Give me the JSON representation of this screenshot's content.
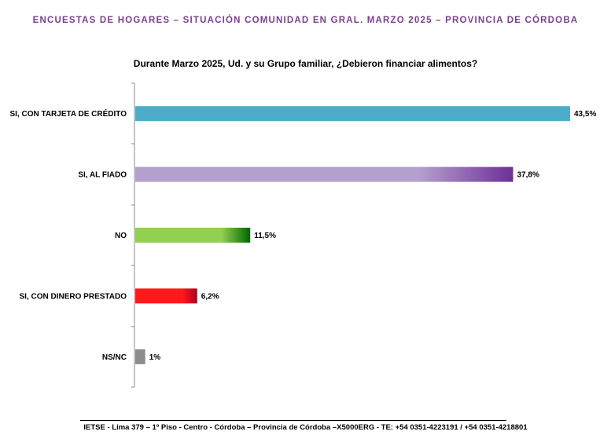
{
  "header": {
    "title": "ENCUESTAS DE HOGARES – SITUACIÓN COMUNIDAD EN GRAL. MARZO 2025 – PROVINCIA DE CÓRDOBA"
  },
  "footer": {
    "text": "IETSE - Lima 379 – 1º Piso - Centro - Córdoba – Provincia de Córdoba –X5000ERG - TE: +54 0351-4223191 / +54 0351-4218801"
  },
  "chart_data": {
    "type": "bar",
    "orientation": "horizontal",
    "title": "Durante Marzo 2025, Ud. y su Grupo familiar, ¿Debieron financiar alimentos?",
    "xlabel": "",
    "ylabel": "",
    "xlim": [
      0,
      43.5
    ],
    "grid": false,
    "categories": [
      "SI, CON TARJETA DE CRÉDITO",
      "SI, AL FIADO",
      "NO",
      "SI, CON DINERO PRESTADO",
      "NS/NC"
    ],
    "values": [
      43.5,
      37.8,
      11.5,
      6.2,
      1
    ],
    "value_labels": [
      "43,5%",
      "37,8%",
      "11,5%",
      "6,2%",
      "1%"
    ],
    "colors": [
      [
        "#4badc9",
        "#4badc9"
      ],
      [
        "#b4a0cc",
        "#6e2f99"
      ],
      [
        "#92d050",
        "#006600"
      ],
      [
        "#ff1a1a",
        "#b00020"
      ],
      [
        "#8c8c8c",
        "#8c8c8c"
      ]
    ]
  }
}
